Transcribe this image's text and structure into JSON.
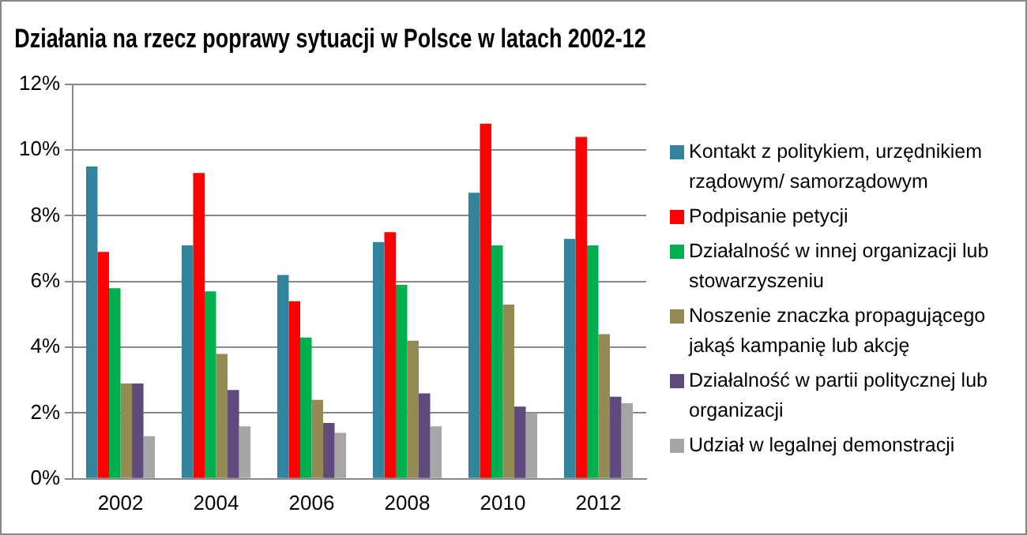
{
  "chart_data": {
    "type": "bar",
    "title": "Działania na rzecz poprawy sytuacji w Polsce w latach 2002-12",
    "categories": [
      "2002",
      "2004",
      "2006",
      "2008",
      "2010",
      "2012"
    ],
    "series": [
      {
        "name": "Kontakt z politykiem, urzędnikiem rządowym/ samorządowym",
        "color": "#31849b",
        "values": [
          9.5,
          7.1,
          6.2,
          7.2,
          8.7,
          7.3
        ]
      },
      {
        "name": "Podpisanie petycji",
        "color": "#ff0000",
        "values": [
          6.9,
          9.3,
          5.4,
          7.5,
          10.8,
          10.4
        ]
      },
      {
        "name": "Działalność w innej organizacji lub stowarzyszeniu",
        "color": "#00b050",
        "values": [
          5.8,
          5.7,
          4.3,
          5.9,
          7.1,
          7.1
        ]
      },
      {
        "name": "Noszenie znaczka propagującego jakąś kampanię lub akcję",
        "color": "#948a54",
        "values": [
          2.9,
          3.8,
          2.4,
          4.2,
          5.3,
          4.4
        ]
      },
      {
        "name": "Działalność w partii politycznej lub organizacji",
        "color": "#604a7b",
        "values": [
          2.9,
          2.7,
          1.7,
          2.6,
          2.2,
          2.5
        ]
      },
      {
        "name": "Udział w legalnej demonstracji",
        "color": "#a6a6a6",
        "values": [
          1.3,
          1.6,
          1.4,
          1.6,
          2.0,
          2.3
        ]
      }
    ],
    "ylim": [
      0,
      12
    ],
    "yticks": [
      {
        "value": 0,
        "label": "0%"
      },
      {
        "value": 2,
        "label": "2%"
      },
      {
        "value": 4,
        "label": "4%"
      },
      {
        "value": 6,
        "label": "6%"
      },
      {
        "value": 8,
        "label": "8%"
      },
      {
        "value": 10,
        "label": "10%"
      },
      {
        "value": 12,
        "label": "12%"
      }
    ],
    "grid": "y",
    "legend": "right"
  }
}
